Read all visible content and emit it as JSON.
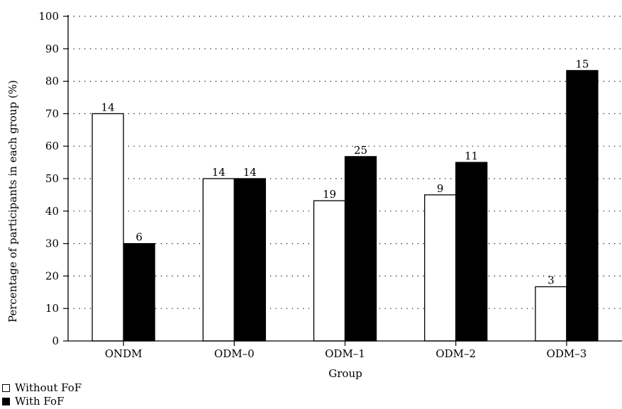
{
  "chart_data": {
    "type": "bar",
    "title": "",
    "xlabel": "Group",
    "ylabel": "Percentage of participants in each group (%)",
    "ylim": [
      0,
      100
    ],
    "yticks": [
      0,
      10,
      20,
      30,
      40,
      50,
      60,
      70,
      80,
      90,
      100
    ],
    "grid": "horizontal-dotted",
    "legend_position": "bottom-left",
    "categories": [
      "ONDM",
      "ODM–0",
      "ODM–1",
      "ODM–2",
      "ODM–3"
    ],
    "series": [
      {
        "name": "Without FoF",
        "color": "#ffffff",
        "values": [
          70,
          50,
          43.2,
          45,
          16.7
        ],
        "labels": [
          "14",
          "14",
          "19",
          "9",
          "3"
        ]
      },
      {
        "name": "With FoF",
        "color": "#000000",
        "values": [
          30,
          50,
          56.8,
          55,
          83.3
        ],
        "labels": [
          "6",
          "14",
          "25",
          "11",
          "15"
        ]
      }
    ]
  }
}
